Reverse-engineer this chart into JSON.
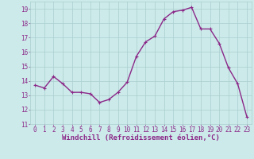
{
  "x": [
    0,
    1,
    2,
    3,
    4,
    5,
    6,
    7,
    8,
    9,
    10,
    11,
    12,
    13,
    14,
    15,
    16,
    17,
    18,
    19,
    20,
    21,
    22,
    23
  ],
  "y": [
    13.7,
    13.5,
    14.3,
    13.8,
    13.2,
    13.2,
    13.1,
    12.5,
    12.7,
    13.2,
    13.9,
    15.7,
    16.7,
    17.1,
    18.3,
    18.8,
    18.9,
    19.1,
    17.6,
    17.6,
    16.6,
    14.9,
    13.8,
    11.5
  ],
  "line_color": "#8b2888",
  "marker": "+",
  "marker_size": 3,
  "linewidth": 1.0,
  "xlabel": "Windchill (Refroidissement éolien,°C)",
  "xlabel_fontsize": 6.5,
  "xlim": [
    -0.5,
    23.5
  ],
  "ylim": [
    11,
    19.5
  ],
  "yticks": [
    11,
    12,
    13,
    14,
    15,
    16,
    17,
    18,
    19
  ],
  "xticks": [
    0,
    1,
    2,
    3,
    4,
    5,
    6,
    7,
    8,
    9,
    10,
    11,
    12,
    13,
    14,
    15,
    16,
    17,
    18,
    19,
    20,
    21,
    22,
    23
  ],
  "xtick_labels": [
    "0",
    "1",
    "2",
    "3",
    "4",
    "5",
    "6",
    "7",
    "8",
    "9",
    "10",
    "11",
    "12",
    "13",
    "14",
    "15",
    "16",
    "17",
    "18",
    "19",
    "20",
    "21",
    "22",
    "23"
  ],
  "background_color": "#cceaea",
  "grid_color": "#aacece",
  "tick_fontsize": 5.5,
  "label_color": "#8b2888"
}
